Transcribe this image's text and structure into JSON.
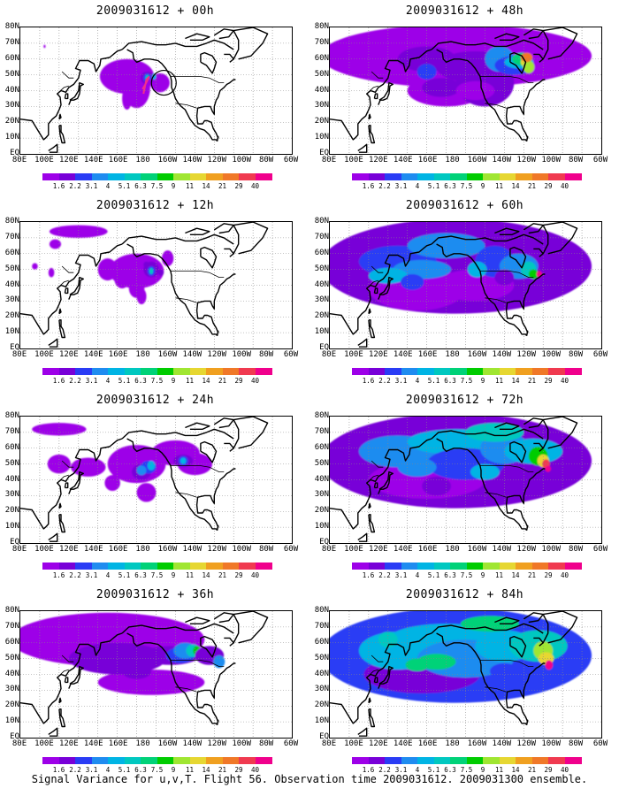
{
  "panels": [
    {
      "title": "2009031612 + 00h",
      "day": 0
    },
    {
      "title": "2009031612 + 48h",
      "day": 48
    },
    {
      "title": "2009031612 + 12h",
      "day": 12
    },
    {
      "title": "2009031612 + 60h",
      "day": 60
    },
    {
      "title": "2009031612 + 24h",
      "day": 24
    },
    {
      "title": "2009031612 + 72h",
      "day": 72
    },
    {
      "title": "2009031612 + 36h",
      "day": 36
    },
    {
      "title": "2009031612 + 84h",
      "day": 84
    }
  ],
  "lat_labels": [
    "80N",
    "70N",
    "60N",
    "50N",
    "40N",
    "30N",
    "20N",
    "10N",
    "EQ"
  ],
  "lon_labels": [
    "80E",
    "100E",
    "120E",
    "140E",
    "160E",
    "180",
    "160W",
    "140W",
    "120W",
    "100W",
    "80W",
    "60W"
  ],
  "colorbar": {
    "labels": [
      "1.6",
      "2.2",
      "3.1",
      "4",
      "5.1",
      "6.3",
      "7.5",
      "9",
      "11",
      "14",
      "21",
      "29",
      "40"
    ],
    "colors": [
      "#9d00e8",
      "#7800d8",
      "#2a3cf5",
      "#1f8cf0",
      "#00b4e4",
      "#00c8c0",
      "#00d278",
      "#00cc00",
      "#a0e632",
      "#e6d732",
      "#f0a020",
      "#f07828",
      "#f03a50",
      "#f0008c"
    ]
  },
  "caption": "Signal Variance for u,v,T. Flight 56. Observation time 2009031612. 2009031300 ensemble."
}
